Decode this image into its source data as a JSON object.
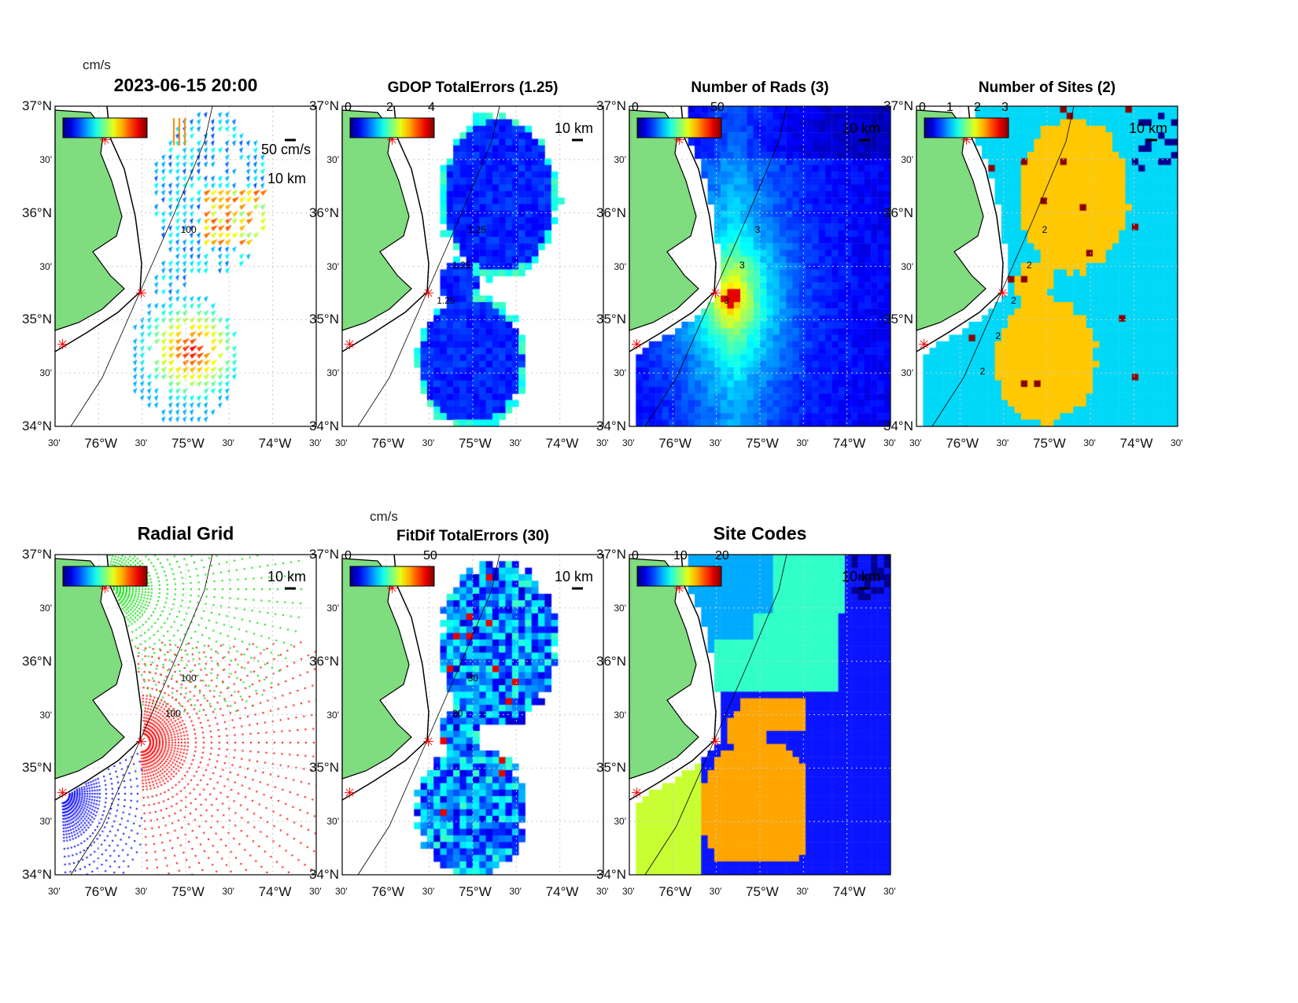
{
  "chart_data": [
    {
      "id": "p1",
      "type": "quiver",
      "title": "2023-06-15 20:00",
      "colorbar_unit": "cm/s",
      "colorbar_ticks": [],
      "scale_labels": [
        "50 cm/s",
        "10 km"
      ],
      "contour_labels": [
        "100"
      ]
    },
    {
      "id": "p2",
      "type": "heatmap",
      "title": "GDOP TotalErrors (1.25)",
      "colorbar_ticks": [
        "0",
        "2",
        "4"
      ],
      "scale_labels": [
        "10 km"
      ],
      "contour_labels": [
        "1.25",
        "1.25",
        "1.25"
      ]
    },
    {
      "id": "p3",
      "type": "heatmap",
      "title": "Number of Rads (3)",
      "colorbar_ticks": [
        "0",
        "50"
      ],
      "scale_labels": [
        "10 km"
      ],
      "contour_labels": [
        "3",
        "3",
        "3"
      ]
    },
    {
      "id": "p4",
      "type": "heatmap",
      "title": "Number of Sites (2)",
      "colorbar_ticks": [
        "0",
        "1",
        "2",
        "3"
      ],
      "scale_labels": [
        "10 km"
      ],
      "contour_labels": [
        "2",
        "2",
        "2",
        "2",
        "2"
      ]
    },
    {
      "id": "p5",
      "type": "scatter",
      "title": "Radial Grid",
      "colorbar_ticks": [],
      "scale_labels": [
        "10 km"
      ],
      "contour_labels": [
        "100",
        "100"
      ]
    },
    {
      "id": "p6",
      "type": "heatmap",
      "title": "FitDif TotalErrors (30)",
      "colorbar_unit": "cm/s",
      "colorbar_ticks": [
        "0",
        "50"
      ],
      "scale_labels": [
        "10 km"
      ],
      "contour_labels": [
        "30",
        "30"
      ]
    },
    {
      "id": "p7",
      "type": "heatmap",
      "title": "Site Codes",
      "colorbar_ticks": [
        "0",
        "10",
        "20"
      ],
      "scale_labels": [
        "10 km"
      ],
      "contour_labels": []
    }
  ],
  "axes": {
    "lat_ticks": [
      "37°N",
      "30'",
      "36°N",
      "30'",
      "35°N",
      "30'",
      "34°N"
    ],
    "lon_ticks": [
      "30'",
      "76°W",
      "30'",
      "75°W",
      "30'",
      "74°W",
      "30'"
    ],
    "lat_range": [
      34,
      37
    ],
    "lon_range": [
      -76.5,
      -73.5
    ]
  },
  "colors": {
    "land": "#7fdc7f",
    "site_marker": "#ff0000"
  }
}
